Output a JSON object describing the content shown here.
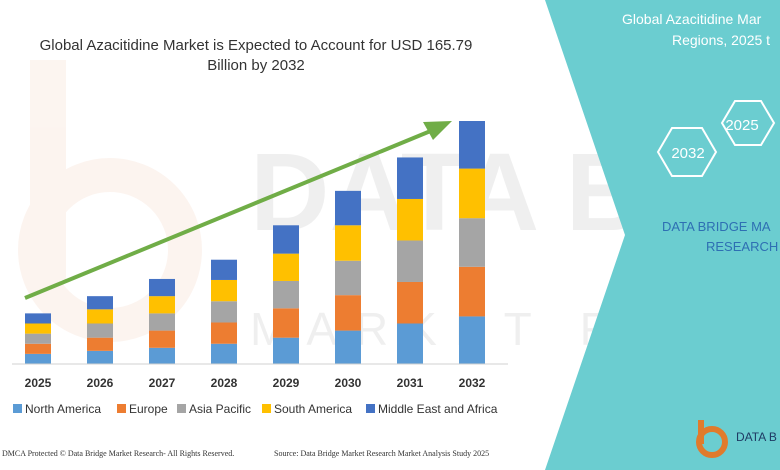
{
  "chart_data": {
    "type": "bar",
    "stacked": true,
    "title": "Global Azacitidine Market is Expected to Account for USD 165.79 Billion by 2032",
    "title_lines": [
      "Global Azacitidine Market is Expected to Account for USD 165.79",
      "Billion by 2032"
    ],
    "categories": [
      "2025",
      "2026",
      "2027",
      "2028",
      "2029",
      "2030",
      "2031",
      "2032"
    ],
    "series": [
      {
        "name": "North America",
        "color": "#5b9bd5",
        "values": [
          10,
          13,
          16,
          20,
          26,
          33,
          40,
          47
        ]
      },
      {
        "name": "Europe",
        "color": "#ed7d31",
        "values": [
          10,
          13,
          17,
          21,
          29,
          35,
          41,
          49
        ]
      },
      {
        "name": "Asia Pacific",
        "color": "#a5a5a5",
        "values": [
          10,
          14,
          17,
          21,
          27,
          34,
          41,
          48
        ]
      },
      {
        "name": "South America",
        "color": "#ffc000",
        "values": [
          10,
          14,
          17,
          21,
          27,
          35,
          41,
          49
        ]
      },
      {
        "name": "Middle East and Africa",
        "color": "#4472c4",
        "values": [
          10,
          13,
          17,
          20,
          28,
          34,
          41,
          47
        ]
      }
    ],
    "legend_position": "bottom",
    "grid": false,
    "trend_arrow_color": "#70ad47"
  },
  "right_panel": {
    "title_lines": [
      "Global Azacitidine Mar",
      "Regions, 2025 t"
    ],
    "hex_labels": [
      "2025",
      "2032"
    ],
    "brand_lines": [
      "DATA BRIDGE MA",
      "RESEARCH"
    ],
    "logo_text": "DATA B",
    "bg_color": "#6bcdd0"
  },
  "footer": {
    "left": "DMCA Protected © Data Bridge Market Research- All Rights Reserved.",
    "right": "Source: Data Bridge Market Research Market Analysis Study 2025"
  }
}
